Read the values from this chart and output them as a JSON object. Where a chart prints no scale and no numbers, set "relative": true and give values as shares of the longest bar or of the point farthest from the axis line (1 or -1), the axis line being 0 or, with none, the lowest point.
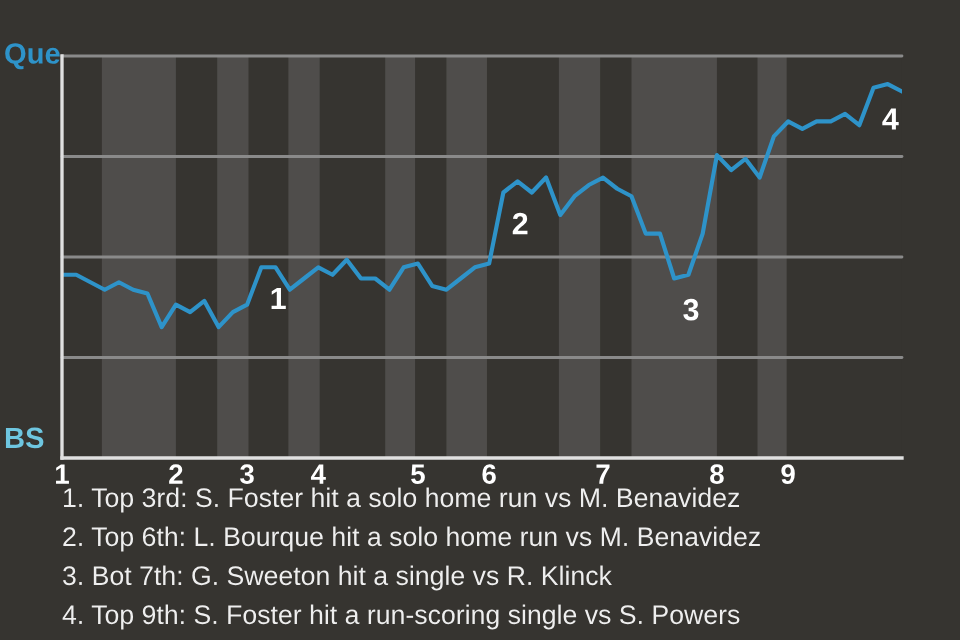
{
  "chart_data": {
    "type": "line",
    "categories": [
      "1",
      null,
      null,
      null,
      null,
      null,
      null,
      null,
      "2",
      null,
      null,
      null,
      null,
      "3",
      null,
      null,
      null,
      null,
      "4",
      null,
      null,
      null,
      null,
      null,
      null,
      "5",
      null,
      null,
      null,
      null,
      "6",
      null,
      null,
      null,
      null,
      null,
      null,
      null,
      "7",
      null,
      null,
      null,
      null,
      null,
      null,
      null,
      "8",
      null,
      null,
      null,
      null,
      "9",
      null,
      null,
      null,
      null,
      null,
      null,
      null,
      null
    ],
    "relative": true,
    "series": [
      {
        "color": "#2e93c9",
        "values": [
          0.49,
          0.49,
          0.47,
          0.45,
          0.47,
          0.45,
          0.44,
          0.35,
          0.41,
          0.39,
          0.42,
          0.35,
          0.39,
          0.41,
          0.51,
          0.51,
          0.45,
          0.48,
          0.51,
          0.49,
          0.53,
          0.48,
          0.48,
          0.45,
          0.51,
          0.52,
          0.46,
          0.45,
          0.48,
          0.51,
          0.52,
          0.71,
          0.74,
          0.71,
          0.75,
          0.65,
          0.7,
          0.73,
          0.75,
          0.72,
          0.7,
          0.6,
          0.6,
          0.48,
          0.49,
          0.6,
          0.81,
          0.77,
          0.8,
          0.75,
          0.86,
          0.9,
          0.88,
          0.9,
          0.9,
          0.92,
          0.89,
          0.99,
          1,
          0.98
        ]
      }
    ],
    "grid": "y",
    "legend": false,
    "marker": "none",
    "line_style": "solid",
    "annotations": [
      "Que",
      "BS",
      {
        "text": "1",
        "y": 0.51
      },
      {
        "text": "2",
        "y": 0.71
      },
      {
        "text": "3",
        "y": 0.48
      },
      {
        "text": "4",
        "y": 0.99
      },
      "1. Top 3rd: S. Foster hit a solo home run vs M. Benavidez",
      "2. Top 6th: L. Bourque hit a solo home run vs M. Benavidez",
      "3. Bot 7th: G. Sweeton hit a single vs R. Klinck",
      "4. Top 9th: S. Foster hit a run-scoring single vs S. Powers"
    ]
  }
}
